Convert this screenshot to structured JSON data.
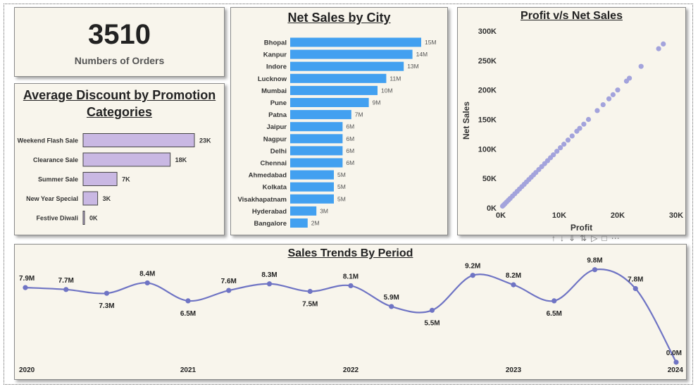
{
  "kpi": {
    "value": "3510",
    "label": "Numbers of Orders"
  },
  "charts": [
    {
      "type": "bar",
      "title_line1": "Average Discount by Promotion",
      "title_line2": "Categories",
      "categories": [
        "Weekend Flash Sale",
        "Clearance Sale",
        "Summer Sale",
        "New Year Special",
        "Festive Diwali"
      ],
      "values": [
        23,
        18,
        7,
        3,
        0
      ],
      "data_labels": [
        "23K",
        "18K",
        "7K",
        "3K",
        "0K"
      ],
      "orientation": "horizontal",
      "bar_color": "#c9b8e3"
    },
    {
      "type": "bar",
      "title": "Net Sales by City",
      "categories": [
        "Bhopal",
        "Kanpur",
        "Indore",
        "Lucknow",
        "Mumbai",
        "Pune",
        "Patna",
        "Jaipur",
        "Nagpur",
        "Delhi",
        "Chennai",
        "Ahmedabad",
        "Kolkata",
        "Visakhapatnam",
        "Hyderabad",
        "Bangalore"
      ],
      "values": [
        15,
        14,
        13,
        11,
        10,
        9,
        7,
        6,
        6,
        6,
        6,
        5,
        5,
        5,
        3,
        2
      ],
      "data_labels": [
        "15M",
        "14M",
        "13M",
        "11M",
        "10M",
        "9M",
        "7M",
        "6M",
        "6M",
        "6M",
        "6M",
        "5M",
        "5M",
        "5M",
        "3M",
        "2M"
      ],
      "orientation": "horizontal",
      "bar_color": "#42a0f0"
    },
    {
      "type": "scatter",
      "title": "Profit v/s Net Sales",
      "xlabel": "Profit",
      "ylabel": "Net Sales",
      "xlim": [
        0,
        30000
      ],
      "ylim": [
        0,
        300000
      ],
      "x_ticks": [
        "0K",
        "10K",
        "20K",
        "30K"
      ],
      "y_ticks": [
        "0K",
        "50K",
        "100K",
        "150K",
        "200K",
        "250K",
        "300K"
      ],
      "point_color": "#a3a3dc",
      "points": [
        [
          300,
          3000
        ],
        [
          500,
          5000
        ],
        [
          700,
          7000
        ],
        [
          1000,
          10000
        ],
        [
          1300,
          13000
        ],
        [
          1600,
          16000
        ],
        [
          2000,
          20000
        ],
        [
          2400,
          24000
        ],
        [
          2800,
          28000
        ],
        [
          3200,
          32000
        ],
        [
          3600,
          36000
        ],
        [
          4000,
          40000
        ],
        [
          4400,
          44000
        ],
        [
          4800,
          48000
        ],
        [
          5200,
          52000
        ],
        [
          5600,
          56000
        ],
        [
          6000,
          60000
        ],
        [
          6500,
          65000
        ],
        [
          7000,
          70000
        ],
        [
          7500,
          75000
        ],
        [
          8000,
          80000
        ],
        [
          8500,
          85000
        ],
        [
          9000,
          90000
        ],
        [
          9600,
          96000
        ],
        [
          10200,
          102000
        ],
        [
          10800,
          108000
        ],
        [
          11500,
          115000
        ],
        [
          12200,
          122000
        ],
        [
          13000,
          130000
        ],
        [
          13500,
          135000
        ],
        [
          14200,
          142000
        ],
        [
          15000,
          150000
        ],
        [
          16500,
          165000
        ],
        [
          17500,
          175000
        ],
        [
          18500,
          185000
        ],
        [
          19200,
          192000
        ],
        [
          20000,
          200000
        ],
        [
          21500,
          215000
        ],
        [
          22000,
          220000
        ],
        [
          24000,
          240000
        ],
        [
          27000,
          270000
        ],
        [
          27800,
          278000
        ]
      ]
    },
    {
      "type": "line",
      "title": "Sales Trends By Period",
      "year_labels": [
        "2020",
        "2021",
        "2022",
        "2023",
        "2024"
      ],
      "values": [
        7.9,
        7.7,
        7.3,
        8.4,
        6.5,
        7.6,
        8.3,
        7.5,
        8.1,
        5.9,
        5.5,
        9.2,
        8.2,
        6.5,
        9.8,
        7.8,
        0.0
      ],
      "data_labels": [
        "7.9M",
        "7.7M",
        "7.3M",
        "8.4M",
        "6.5M",
        "7.6M",
        "8.3M",
        "7.5M",
        "8.1M",
        "5.9M",
        "5.5M",
        "9.2M",
        "8.2M",
        "6.5M",
        "9.8M",
        "7.8M",
        "0.0M"
      ],
      "line_color": "#6f74c4"
    }
  ],
  "toolbar_icons": [
    "pin-icon",
    "drill-down-icon",
    "expand-all-icon",
    "drill-up-icon",
    "filter-icon",
    "focus-icon",
    "more-options-icon"
  ]
}
